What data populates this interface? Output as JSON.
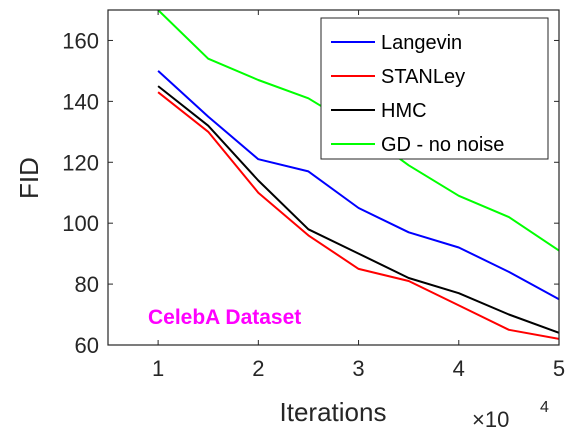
{
  "chart_data": {
    "type": "line",
    "title": "",
    "xlabel": "Iterations",
    "ylabel": "FID",
    "x_multiplier_label": "×10",
    "x_multiplier_exp": "4",
    "x": [
      1,
      1.5,
      2,
      2.5,
      3,
      3.5,
      4,
      4.5,
      5
    ],
    "xlim": [
      0.5,
      5
    ],
    "ylim": [
      60,
      170
    ],
    "xticks": [
      "1",
      "2",
      "3",
      "4",
      "5"
    ],
    "xtick_values": [
      1,
      2,
      3,
      4,
      5
    ],
    "yticks": [
      "60",
      "80",
      "100",
      "120",
      "140",
      "160"
    ],
    "ytick_values": [
      60,
      80,
      100,
      120,
      140,
      160
    ],
    "grid": false,
    "legend_position": "top-right",
    "annotation": "CelebA Dataset",
    "annotation_color": "#ff00ff",
    "series": [
      {
        "name": "Langevin",
        "color": "#0000ff",
        "values": [
          150,
          135,
          121,
          117,
          105,
          97,
          92,
          84,
          75
        ]
      },
      {
        "name": "STANLey",
        "color": "#ff0000",
        "values": [
          143,
          130,
          110,
          96,
          85,
          81,
          73,
          65,
          62
        ]
      },
      {
        "name": "HMC",
        "color": "#000000",
        "values": [
          145,
          132,
          114,
          98,
          90,
          82,
          77,
          70,
          64
        ]
      },
      {
        "name": "GD - no noise",
        "color": "#00ff00",
        "values": [
          170,
          154,
          147,
          141,
          131,
          119,
          109,
          102,
          91
        ]
      }
    ]
  }
}
